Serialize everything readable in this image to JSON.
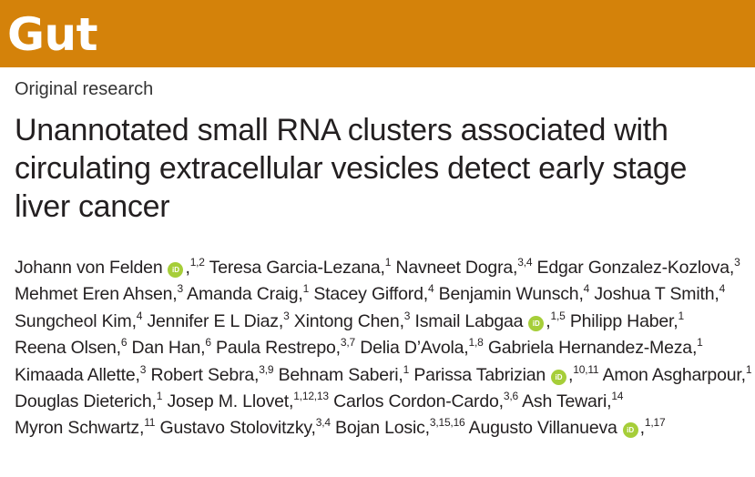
{
  "journal": {
    "name": "Gut",
    "brand_color": "#d4820a"
  },
  "section": "Original research",
  "title": "Unannotated small RNA clusters associated with circulating extracellular vesicles detect early stage liver cancer",
  "orcid_icon": {
    "label": "iD",
    "color": "#a6ce39"
  },
  "authors": [
    {
      "name": "Johann von Felden",
      "orcid": true,
      "sup": "1,2"
    },
    {
      "name": "Teresa Garcia-Lezana",
      "orcid": false,
      "sup": "1"
    },
    {
      "name": "Navneet Dogra",
      "orcid": false,
      "sup": "3,4"
    },
    {
      "name": "Edgar Gonzalez-Kozlova",
      "orcid": false,
      "sup": "3"
    },
    {
      "name": "Mehmet Eren Ahsen",
      "orcid": false,
      "sup": "3"
    },
    {
      "name": "Amanda Craig",
      "orcid": false,
      "sup": "1"
    },
    {
      "name": "Stacey Gifford",
      "orcid": false,
      "sup": "4"
    },
    {
      "name": "Benjamin Wunsch",
      "orcid": false,
      "sup": "4"
    },
    {
      "name": "Joshua T Smith",
      "orcid": false,
      "sup": "4"
    },
    {
      "name": "Sungcheol Kim",
      "orcid": false,
      "sup": "4"
    },
    {
      "name": "Jennifer E L Diaz",
      "orcid": false,
      "sup": "3"
    },
    {
      "name": "Xintong Chen",
      "orcid": false,
      "sup": "3"
    },
    {
      "name": "Ismail Labgaa",
      "orcid": true,
      "sup": "1,5"
    },
    {
      "name": "Philipp Haber",
      "orcid": false,
      "sup": "1"
    },
    {
      "name": "Reena Olsen",
      "orcid": false,
      "sup": "6"
    },
    {
      "name": "Dan Han",
      "orcid": false,
      "sup": "6"
    },
    {
      "name": "Paula Restrepo",
      "orcid": false,
      "sup": "3,7"
    },
    {
      "name": "Delia D’Avola",
      "orcid": false,
      "sup": "1,8"
    },
    {
      "name": "Gabriela Hernandez-Meza",
      "orcid": false,
      "sup": "1"
    },
    {
      "name": "Kimaada Allette",
      "orcid": false,
      "sup": "3"
    },
    {
      "name": "Robert Sebra",
      "orcid": false,
      "sup": "3,9"
    },
    {
      "name": "Behnam Saberi",
      "orcid": false,
      "sup": "1"
    },
    {
      "name": "Parissa Tabrizian",
      "orcid": true,
      "sup": "10,11"
    },
    {
      "name": "Amon Asgharpour",
      "orcid": false,
      "sup": "1"
    },
    {
      "name": "Douglas Dieterich",
      "orcid": false,
      "sup": "1"
    },
    {
      "name": "Josep M. Llovet",
      "orcid": false,
      "sup": "1,12,13"
    },
    {
      "name": "Carlos Cordon-Cardo",
      "orcid": false,
      "sup": "3,6"
    },
    {
      "name": "Ash Tewari",
      "orcid": false,
      "sup": "14"
    },
    {
      "name": "Myron Schwartz",
      "orcid": false,
      "sup": "11"
    },
    {
      "name": "Gustavo Stolovitzky",
      "orcid": false,
      "sup": "3,4"
    },
    {
      "name": "Bojan Losic",
      "orcid": false,
      "sup": "3,15,16"
    },
    {
      "name": "Augusto Villanueva",
      "orcid": true,
      "sup": "1,17"
    }
  ]
}
